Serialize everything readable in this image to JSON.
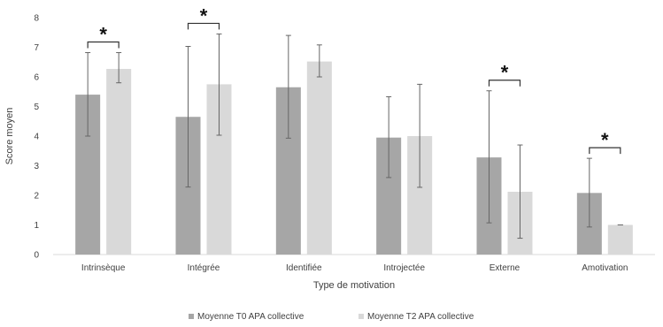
{
  "chart_data": {
    "type": "bar",
    "title": "",
    "xlabel": "Type de motivation",
    "ylabel": "Score moyen",
    "ylim": [
      0,
      8
    ],
    "yticks": [
      0,
      1,
      2,
      3,
      4,
      5,
      6,
      7,
      8
    ],
    "categories": [
      "Intrinsèque",
      "Intégrée",
      "Identifiée",
      "Introjectée",
      "Externe",
      "Amotivation"
    ],
    "series": [
      {
        "name": "Moyenne T0 APA collective",
        "color": "#a6a6a6",
        "values": [
          5.4,
          4.65,
          5.65,
          3.95,
          3.28,
          2.08
        ],
        "error_low": [
          4.0,
          2.28,
          3.93,
          2.6,
          1.07,
          0.93
        ],
        "error_high": [
          6.82,
          7.03,
          7.4,
          5.33,
          5.53,
          3.25
        ]
      },
      {
        "name": "Moyenne T2 APA collective",
        "color": "#d9d9d9",
        "values": [
          6.27,
          5.75,
          6.52,
          4.0,
          2.12,
          1.0
        ],
        "error_low": [
          5.8,
          4.03,
          6.0,
          2.27,
          0.55,
          1.0
        ],
        "error_high": [
          6.82,
          7.45,
          7.08,
          5.75,
          3.7,
          1.0
        ]
      }
    ],
    "significance": [
      {
        "category": "Intrinsèque",
        "symbol": "*"
      },
      {
        "category": "Intégrée",
        "symbol": "*"
      },
      {
        "category": "Externe",
        "symbol": "*"
      },
      {
        "category": "Amotivation",
        "symbol": "*"
      }
    ],
    "grid": false,
    "legend_position": "bottom"
  }
}
